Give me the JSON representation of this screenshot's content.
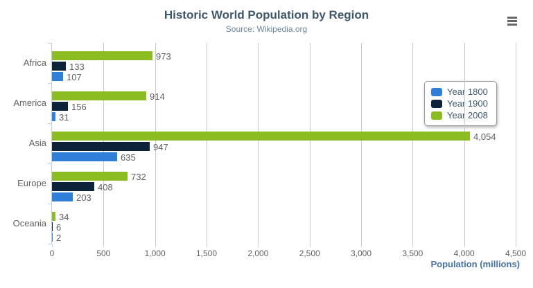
{
  "chart_data": {
    "type": "bar",
    "orientation": "horizontal",
    "title": "Historic World Population by Region",
    "subtitle": "Source: Wikipedia.org",
    "categories": [
      "Africa",
      "America",
      "Asia",
      "Europe",
      "Oceania"
    ],
    "series": [
      {
        "name": "Year 1800",
        "color": "#2F7ED8",
        "values": [
          107,
          31,
          635,
          203,
          2
        ]
      },
      {
        "name": "Year 1900",
        "color": "#0D233A",
        "values": [
          133,
          156,
          947,
          408,
          6
        ]
      },
      {
        "name": "Year 2008",
        "color": "#8BBC21",
        "values": [
          973,
          914,
          4054,
          732,
          34
        ]
      }
    ],
    "bar_display_order_top_to_bottom": [
      "Year 2008",
      "Year 1900",
      "Year 1800"
    ],
    "xlabel": "Population (millions)",
    "ylabel": "",
    "xlim": [
      0,
      4500
    ],
    "xticks": [
      0,
      500,
      1000,
      1500,
      2000,
      2500,
      3000,
      3500,
      4000,
      4500
    ],
    "grid": true,
    "data_labels": true,
    "legend_position": "right-inside",
    "legend_entries": [
      "Year 1800",
      "Year 1900",
      "Year 2008"
    ]
  },
  "toolbar": {
    "menu_icon": "hamburger-menu"
  },
  "colors": {
    "title": "#3E576F",
    "subtitle": "#6D869F",
    "axis_title": "#4572A7",
    "tick_label": "#606060",
    "data_label": "#606060",
    "grid_line": "#C9C9C9",
    "axis_line": "#C0D0E0",
    "legend_text": "#3E576F",
    "legend_border": "#999999",
    "menu_icon": "#666666",
    "background": "#FFFFFF"
  }
}
